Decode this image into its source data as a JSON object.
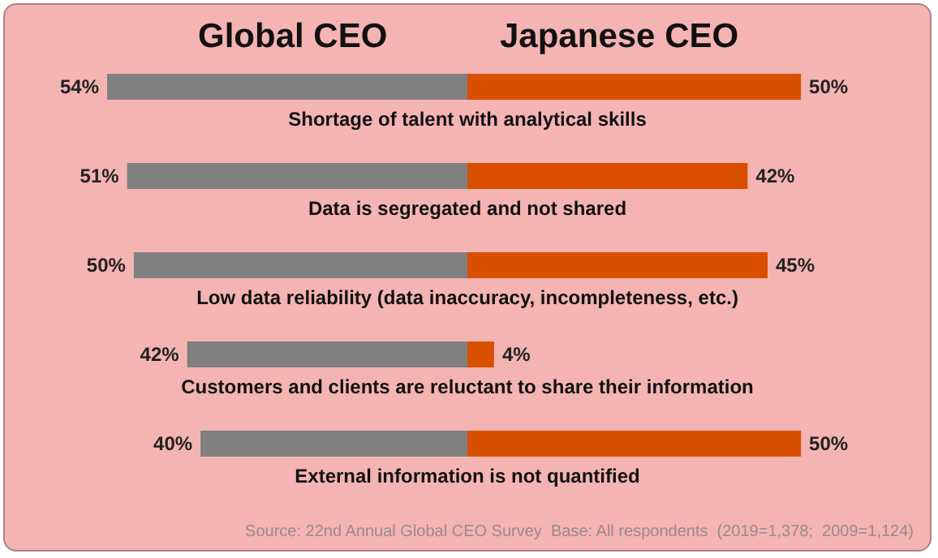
{
  "chart_data": [
    {
      "type": "bar",
      "orientation": "horizontal",
      "title": "Global CEO",
      "categories": [
        "Shortage of talent with analytical skills",
        "Data is segregated and not shared",
        "Low data reliability (data inaccuracy, incompleteness, etc.)",
        "Customers and clients are reluctant to share their information",
        "External information is not quantified"
      ],
      "color": "#808080",
      "values": [
        54,
        51,
        50,
        42,
        40
      ],
      "value_labels": [
        "54%",
        "51%",
        "50%",
        "42%",
        "40%"
      ],
      "tick_labels": "y",
      "grid": false,
      "annotations": [
        "Source: 22nd Annual Global CEO Survey  Base: All respondents  (2019=1,378;  2009=1,124)"
      ]
    },
    {
      "type": "bar",
      "orientation": "horizontal",
      "title": "Japanese CEO",
      "categories": [
        null,
        null,
        null,
        null,
        null
      ],
      "color": "#d94f00",
      "values": [
        50,
        42,
        45,
        4,
        50
      ],
      "value_labels": [
        "50%",
        "42%",
        "45%",
        "4%",
        "50%"
      ],
      "tick_labels": false,
      "grid": false
    }
  ]
}
